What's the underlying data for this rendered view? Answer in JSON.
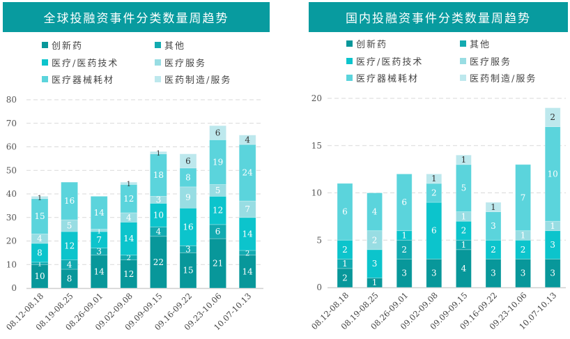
{
  "series_colors": [
    "#08979a",
    "#12aab0",
    "#0cc4cc",
    "#98dde3",
    "#5bd4dc",
    "#bde8ed"
  ],
  "chart_data": [
    {
      "type": "bar",
      "stacked": true,
      "title": "全球投融资事件分类数量周趋势",
      "categories": [
        "08.12-08.18",
        "08.19-08.25",
        "08.26-09.01",
        "09.02-09.08",
        "09.09-09.15",
        "09.16-09.22",
        "09.23-10.06",
        "10.07-10.13"
      ],
      "ylim": [
        0,
        80
      ],
      "yticks": [
        "0",
        "10",
        "20",
        "30",
        "40",
        "50",
        "60",
        "70",
        "80"
      ],
      "legend": "top",
      "series": [
        {
          "name": "创新药",
          "values": [
            10,
            8,
            14,
            12,
            22,
            15,
            21,
            14
          ]
        },
        {
          "name": "其他",
          "values": [
            1,
            4,
            3,
            2,
            4,
            3,
            6,
            2
          ]
        },
        {
          "name": "医疗/医药技术",
          "values": [
            8,
            12,
            7,
            14,
            10,
            16,
            12,
            14
          ]
        },
        {
          "name": "医疗服务",
          "values": [
            4,
            5,
            1,
            4,
            3,
            9,
            5,
            7
          ]
        },
        {
          "name": "医疗器械耗材",
          "values": [
            15,
            16,
            14,
            12,
            18,
            8,
            19,
            24
          ]
        },
        {
          "name": "医药制造/服务",
          "values": [
            1,
            0,
            0,
            1,
            1,
            6,
            6,
            4
          ]
        }
      ]
    },
    {
      "type": "bar",
      "stacked": true,
      "title": "国内投融资事件分类数量周趋势",
      "categories": [
        "08.12-08.18",
        "08.19-08.25",
        "08.26-09.01",
        "09.02-09.08",
        "09.09-09.15",
        "09.16-09.22",
        "09.23-10.06",
        "10.07-10.13"
      ],
      "ylim": [
        0,
        20
      ],
      "yticks": [
        "0",
        "5",
        "10",
        "15",
        "20"
      ],
      "legend": "top",
      "series": [
        {
          "name": "创新药",
          "values": [
            2,
            1,
            3,
            3,
            4,
            3,
            3,
            3
          ]
        },
        {
          "name": "其他",
          "values": [
            1,
            0,
            2,
            0,
            1,
            0,
            0,
            0
          ]
        },
        {
          "name": "医疗/医药技术",
          "values": [
            2,
            3,
            1,
            6,
            2,
            2,
            2,
            3
          ]
        },
        {
          "name": "医疗服务",
          "values": [
            0,
            2,
            0,
            0,
            1,
            0,
            1,
            1
          ]
        },
        {
          "name": "医疗器械耗材",
          "values": [
            6,
            4,
            6,
            2,
            5,
            3,
            7,
            10
          ]
        },
        {
          "name": "医药制造/服务",
          "values": [
            0,
            0,
            0,
            1,
            1,
            1,
            0,
            2
          ]
        }
      ]
    }
  ]
}
